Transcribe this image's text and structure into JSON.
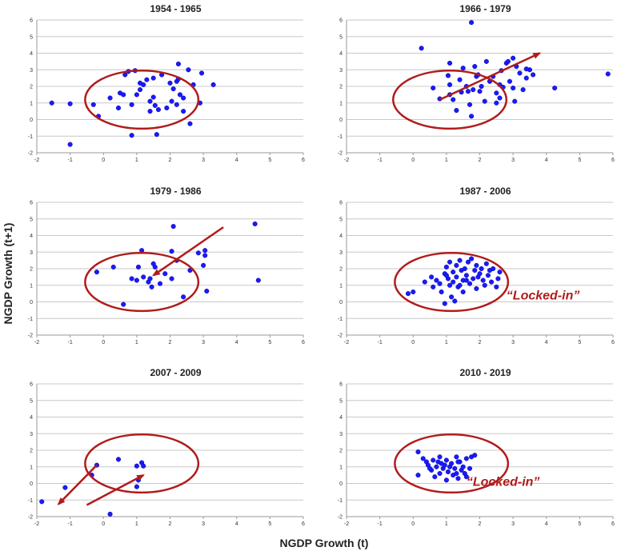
{
  "xlabel": "NGDP Growth (t)",
  "ylabel": "NGDP Growth (t+1)",
  "colors": {
    "points": "#1a1aff",
    "annotation": "#b01c1c",
    "grid": "#c8c8c8"
  },
  "chart_data": [
    {
      "type": "scatter",
      "title": "1954 - 1965",
      "xlim": [
        -2,
        6
      ],
      "ylim": [
        -2,
        6
      ],
      "xticks": [
        "-2",
        "-1",
        "0",
        "1",
        "2",
        "3",
        "4",
        "5",
        "6"
      ],
      "yticks": [
        "-2",
        "-1",
        "0",
        "1",
        "2",
        "3",
        "4",
        "5",
        "6"
      ],
      "grid": "horizontal",
      "points": [
        [
          -1.55,
          1.0
        ],
        [
          -1.0,
          0.95
        ],
        [
          -1.0,
          -1.5
        ],
        [
          -0.3,
          0.9
        ],
        [
          -0.15,
          0.2
        ],
        [
          0.2,
          1.3
        ],
        [
          0.45,
          0.7
        ],
        [
          0.5,
          1.6
        ],
        [
          0.6,
          1.5
        ],
        [
          0.65,
          2.7
        ],
        [
          0.75,
          2.9
        ],
        [
          0.85,
          0.9
        ],
        [
          0.95,
          2.95
        ],
        [
          0.85,
          -0.95
        ],
        [
          1.0,
          1.5
        ],
        [
          1.1,
          1.8
        ],
        [
          1.1,
          2.2
        ],
        [
          1.2,
          2.1
        ],
        [
          1.3,
          2.4
        ],
        [
          1.4,
          0.5
        ],
        [
          1.4,
          1.1
        ],
        [
          1.5,
          2.5
        ],
        [
          1.5,
          1.35
        ],
        [
          1.55,
          0.85
        ],
        [
          1.6,
          -0.9
        ],
        [
          1.65,
          0.6
        ],
        [
          1.75,
          2.7
        ],
        [
          1.9,
          0.7
        ],
        [
          2.0,
          2.2
        ],
        [
          2.05,
          1.1
        ],
        [
          2.1,
          1.85
        ],
        [
          2.2,
          2.3
        ],
        [
          2.25,
          2.45
        ],
        [
          2.25,
          3.35
        ],
        [
          2.3,
          1.5
        ],
        [
          2.4,
          1.3
        ],
        [
          2.4,
          0.5
        ],
        [
          2.55,
          3.0
        ],
        [
          2.6,
          -0.25
        ],
        [
          2.7,
          2.1
        ],
        [
          2.9,
          1.0
        ],
        [
          2.95,
          2.8
        ],
        [
          3.3,
          2.1
        ],
        [
          2.2,
          0.9
        ]
      ],
      "annotations": [
        {
          "kind": "ellipse",
          "cx": 1.15,
          "cy": 1.2,
          "rx": 1.7,
          "ry": 1.75
        }
      ]
    },
    {
      "type": "scatter",
      "title": "1966 - 1979",
      "xlim": [
        -2,
        6
      ],
      "ylim": [
        -2,
        6
      ],
      "xticks": [
        "-2",
        "-1",
        "0",
        "1",
        "2",
        "3",
        "4",
        "5",
        "6"
      ],
      "yticks": [
        "-2",
        "-1",
        "0",
        "1",
        "2",
        "3",
        "4",
        "5",
        "6"
      ],
      "grid": "horizontal",
      "points": [
        [
          0.25,
          4.3
        ],
        [
          0.6,
          1.9
        ],
        [
          0.8,
          1.25
        ],
        [
          1.05,
          2.65
        ],
        [
          1.1,
          2.1
        ],
        [
          1.1,
          1.5
        ],
        [
          1.1,
          3.4
        ],
        [
          1.2,
          1.2
        ],
        [
          1.3,
          0.55
        ],
        [
          1.4,
          2.4
        ],
        [
          1.45,
          1.65
        ],
        [
          1.5,
          3.1
        ],
        [
          1.6,
          2.0
        ],
        [
          1.65,
          1.7
        ],
        [
          1.7,
          0.9
        ],
        [
          1.75,
          0.2
        ],
        [
          1.75,
          5.85
        ],
        [
          1.8,
          1.8
        ],
        [
          1.85,
          3.2
        ],
        [
          1.9,
          2.6
        ],
        [
          1.95,
          2.7
        ],
        [
          2.0,
          1.7
        ],
        [
          2.05,
          2.0
        ],
        [
          2.15,
          1.1
        ],
        [
          2.2,
          3.5
        ],
        [
          2.3,
          2.3
        ],
        [
          2.4,
          2.6
        ],
        [
          2.5,
          1.6
        ],
        [
          2.6,
          1.3
        ],
        [
          2.65,
          2.95
        ],
        [
          2.7,
          1.95
        ],
        [
          2.8,
          3.4
        ],
        [
          2.85,
          3.5
        ],
        [
          2.9,
          2.3
        ],
        [
          3.0,
          1.9
        ],
        [
          3.0,
          3.7
        ],
        [
          3.05,
          1.1
        ],
        [
          3.1,
          3.2
        ],
        [
          3.2,
          2.8
        ],
        [
          3.3,
          1.8
        ],
        [
          3.4,
          2.5
        ],
        [
          3.5,
          3.0
        ],
        [
          3.6,
          2.7
        ],
        [
          3.4,
          3.05
        ],
        [
          4.25,
          1.9
        ],
        [
          5.85,
          2.75
        ],
        [
          2.5,
          1.0
        ],
        [
          2.6,
          2.1
        ]
      ],
      "annotations": [
        {
          "kind": "ellipse",
          "cx": 1.1,
          "cy": 1.2,
          "rx": 1.7,
          "ry": 1.75
        },
        {
          "kind": "arrow",
          "x1": 0.8,
          "y1": 1.2,
          "x2": 3.8,
          "y2": 4.0
        }
      ]
    },
    {
      "type": "scatter",
      "title": "1979 - 1986",
      "xlim": [
        -2,
        6
      ],
      "ylim": [
        -2,
        6
      ],
      "xticks": [
        "-2",
        "-1",
        "0",
        "1",
        "2",
        "3",
        "4",
        "5",
        "6"
      ],
      "yticks": [
        "-2",
        "-1",
        "0",
        "1",
        "2",
        "3",
        "4",
        "5",
        "6"
      ],
      "grid": "horizontal",
      "points": [
        [
          -0.2,
          1.8
        ],
        [
          0.3,
          2.1
        ],
        [
          0.6,
          -0.15
        ],
        [
          0.85,
          1.4
        ],
        [
          1.0,
          1.3
        ],
        [
          1.05,
          2.1
        ],
        [
          1.15,
          3.1
        ],
        [
          1.2,
          1.5
        ],
        [
          1.35,
          1.2
        ],
        [
          1.45,
          0.9
        ],
        [
          1.5,
          2.3
        ],
        [
          1.55,
          2.1
        ],
        [
          1.7,
          1.1
        ],
        [
          1.85,
          1.7
        ],
        [
          2.05,
          1.4
        ],
        [
          2.05,
          3.05
        ],
        [
          2.1,
          4.55
        ],
        [
          2.2,
          2.5
        ],
        [
          2.4,
          0.3
        ],
        [
          2.6,
          1.9
        ],
        [
          2.85,
          2.95
        ],
        [
          3.0,
          2.2
        ],
        [
          3.05,
          2.8
        ],
        [
          3.05,
          3.1
        ],
        [
          3.1,
          0.65
        ],
        [
          4.55,
          4.7
        ],
        [
          4.65,
          1.3
        ],
        [
          1.4,
          1.4
        ]
      ],
      "annotations": [
        {
          "kind": "ellipse",
          "cx": 1.15,
          "cy": 1.2,
          "rx": 1.7,
          "ry": 1.75
        },
        {
          "kind": "arrow",
          "x1": 3.6,
          "y1": 4.5,
          "x2": 1.5,
          "y2": 1.6
        }
      ]
    },
    {
      "type": "scatter",
      "title": "1987 - 2006",
      "xlim": [
        -2,
        6
      ],
      "ylim": [
        -2,
        6
      ],
      "xticks": [
        "-2",
        "-1",
        "0",
        "1",
        "2",
        "3",
        "4",
        "5",
        "6"
      ],
      "yticks": [
        "-2",
        "-1",
        "0",
        "1",
        "2",
        "3",
        "4",
        "5",
        "6"
      ],
      "grid": "horizontal",
      "points": [
        [
          -0.15,
          0.5
        ],
        [
          0.0,
          0.6
        ],
        [
          0.35,
          1.2
        ],
        [
          0.55,
          1.5
        ],
        [
          0.6,
          0.9
        ],
        [
          0.7,
          1.3
        ],
        [
          0.8,
          1.1
        ],
        [
          0.85,
          0.6
        ],
        [
          0.95,
          -0.1
        ],
        [
          0.95,
          1.7
        ],
        [
          1.0,
          2.1
        ],
        [
          1.05,
          1.4
        ],
        [
          1.1,
          1.0
        ],
        [
          1.1,
          2.4
        ],
        [
          1.15,
          0.3
        ],
        [
          1.2,
          1.8
        ],
        [
          1.2,
          1.2
        ],
        [
          1.25,
          0.05
        ],
        [
          1.3,
          2.2
        ],
        [
          1.3,
          1.5
        ],
        [
          1.35,
          0.9
        ],
        [
          1.4,
          2.5
        ],
        [
          1.45,
          1.9
        ],
        [
          1.5,
          1.3
        ],
        [
          1.5,
          0.6
        ],
        [
          1.55,
          2.0
        ],
        [
          1.6,
          1.6
        ],
        [
          1.65,
          2.4
        ],
        [
          1.7,
          1.1
        ],
        [
          1.75,
          2.6
        ],
        [
          1.8,
          1.4
        ],
        [
          1.85,
          1.9
        ],
        [
          1.9,
          2.2
        ],
        [
          1.9,
          0.8
        ],
        [
          1.95,
          1.5
        ],
        [
          2.0,
          1.7
        ],
        [
          2.05,
          2.0
        ],
        [
          2.1,
          1.3
        ],
        [
          2.15,
          1.0
        ],
        [
          2.2,
          2.3
        ],
        [
          2.25,
          1.6
        ],
        [
          2.3,
          1.9
        ],
        [
          2.35,
          1.2
        ],
        [
          2.4,
          2.0
        ],
        [
          2.5,
          0.9
        ],
        [
          2.55,
          1.4
        ],
        [
          1.6,
          1.3
        ],
        [
          1.0,
          1.6
        ],
        [
          1.4,
          1.0
        ],
        [
          2.6,
          1.8
        ]
      ],
      "annotations": [
        {
          "kind": "ellipse",
          "cx": 1.15,
          "cy": 1.2,
          "rx": 1.7,
          "ry": 1.75
        },
        {
          "kind": "label",
          "text": "“Locked-in”",
          "x": 2.8,
          "y": 0.15
        }
      ]
    },
    {
      "type": "scatter",
      "title": "2007 - 2009",
      "xlim": [
        -2,
        6
      ],
      "ylim": [
        -2,
        6
      ],
      "xticks": [
        "-2",
        "-1",
        "0",
        "1",
        "2",
        "3",
        "4",
        "5",
        "6"
      ],
      "yticks": [
        "-2",
        "-1",
        "0",
        "1",
        "2",
        "3",
        "4",
        "5",
        "6"
      ],
      "grid": "horizontal",
      "points": [
        [
          -1.85,
          -1.1
        ],
        [
          -1.15,
          -0.25
        ],
        [
          -0.2,
          1.1
        ],
        [
          -0.35,
          0.5
        ],
        [
          0.2,
          -1.85
        ],
        [
          0.45,
          1.45
        ],
        [
          1.0,
          1.05
        ],
        [
          1.0,
          -0.2
        ],
        [
          1.05,
          0.2
        ],
        [
          1.15,
          1.25
        ],
        [
          1.2,
          1.05
        ]
      ],
      "annotations": [
        {
          "kind": "ellipse",
          "cx": 1.15,
          "cy": 1.2,
          "rx": 1.7,
          "ry": 1.75
        },
        {
          "kind": "arrow",
          "x1": -0.5,
          "y1": -1.3,
          "x2": 1.2,
          "y2": 0.5
        },
        {
          "kind": "arrow",
          "x1": -0.2,
          "y1": 1.1,
          "x2": -1.35,
          "y2": -1.25
        }
      ]
    },
    {
      "type": "scatter",
      "title": "2010 - 2019",
      "xlim": [
        -2,
        6
      ],
      "ylim": [
        -2,
        6
      ],
      "xticks": [
        "-2",
        "-1",
        "0",
        "1",
        "2",
        "3",
        "4",
        "5",
        "6"
      ],
      "yticks": [
        "-2",
        "-1",
        "0",
        "1",
        "2",
        "3",
        "4",
        "5",
        "6"
      ],
      "grid": "horizontal",
      "points": [
        [
          0.15,
          0.5
        ],
        [
          0.15,
          1.9
        ],
        [
          0.3,
          1.5
        ],
        [
          0.4,
          1.3
        ],
        [
          0.45,
          1.1
        ],
        [
          0.55,
          0.8
        ],
        [
          0.6,
          1.4
        ],
        [
          0.65,
          0.4
        ],
        [
          0.7,
          1.0
        ],
        [
          0.75,
          1.3
        ],
        [
          0.8,
          0.6
        ],
        [
          0.85,
          1.2
        ],
        [
          0.9,
          0.9
        ],
        [
          0.95,
          1.1
        ],
        [
          1.0,
          0.2
        ],
        [
          1.0,
          1.4
        ],
        [
          1.05,
          0.7
        ],
        [
          1.1,
          1.0
        ],
        [
          1.15,
          1.2
        ],
        [
          1.2,
          0.5
        ],
        [
          1.25,
          0.9
        ],
        [
          1.3,
          1.6
        ],
        [
          1.35,
          0.3
        ],
        [
          1.4,
          1.3
        ],
        [
          1.45,
          0.8
        ],
        [
          1.5,
          1.0
        ],
        [
          1.55,
          0.6
        ],
        [
          1.6,
          1.5
        ],
        [
          1.7,
          0.9
        ],
        [
          1.75,
          1.6
        ],
        [
          1.85,
          1.7
        ],
        [
          0.8,
          1.6
        ],
        [
          1.3,
          0.6
        ],
        [
          0.5,
          0.9
        ],
        [
          1.6,
          0.4
        ],
        [
          1.35,
          1.3
        ]
      ],
      "annotations": [
        {
          "kind": "ellipse",
          "cx": 1.15,
          "cy": 1.2,
          "rx": 1.7,
          "ry": 1.75
        },
        {
          "kind": "label",
          "text": "“Locked-in”",
          "x": 1.6,
          "y": -0.15
        }
      ]
    }
  ]
}
